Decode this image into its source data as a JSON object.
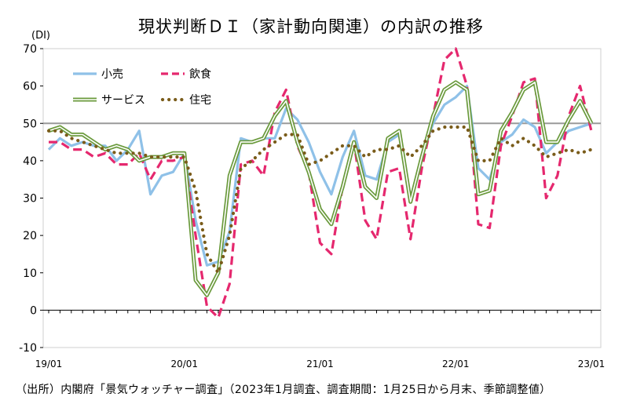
{
  "chart_data": {
    "type": "line",
    "title": "現状判断ＤＩ（家計動向関連）の内訳の推移",
    "ylabel": "(DI)",
    "xlabel": "",
    "ylim": [
      -10,
      70
    ],
    "yticks": [
      -10,
      0,
      10,
      20,
      30,
      40,
      50,
      60,
      70
    ],
    "reference_line": 50,
    "x_tick_labels": [
      "19/01",
      "20/01",
      "21/01",
      "22/01",
      "23/01"
    ],
    "x": [
      "19/01",
      "19/02",
      "19/03",
      "19/04",
      "19/05",
      "19/06",
      "19/07",
      "19/08",
      "19/09",
      "19/10",
      "19/11",
      "19/12",
      "20/01",
      "20/02",
      "20/03",
      "20/04",
      "20/05",
      "20/06",
      "20/07",
      "20/08",
      "20/09",
      "20/10",
      "20/11",
      "20/12",
      "21/01",
      "21/02",
      "21/03",
      "21/04",
      "21/05",
      "21/06",
      "21/07",
      "21/08",
      "21/09",
      "21/10",
      "21/11",
      "21/12",
      "22/01",
      "22/02",
      "22/03",
      "22/04",
      "22/05",
      "22/06",
      "22/07",
      "22/08",
      "22/09",
      "22/10",
      "22/11",
      "22/12",
      "23/01"
    ],
    "legend_position": "top-left",
    "series": [
      {
        "name": "小売",
        "color": "#8fc1e8",
        "style": "solid",
        "values": [
          43,
          46,
          44,
          45,
          44,
          44,
          40,
          43,
          48,
          31,
          36,
          37,
          42,
          24,
          12,
          13,
          21,
          46,
          45,
          46,
          46,
          54,
          51,
          45,
          37,
          31,
          41,
          48,
          36,
          35,
          45,
          47,
          30,
          41,
          50,
          55,
          57,
          60,
          38,
          35,
          45,
          47,
          51,
          49,
          42,
          45,
          48,
          49,
          50
        ]
      },
      {
        "name": "飲食",
        "color": "#e5286e",
        "style": "dashed",
        "values": [
          45,
          45,
          43,
          43,
          41,
          42,
          39,
          39,
          42,
          35,
          40,
          40,
          41,
          20,
          1,
          -2,
          7,
          39,
          40,
          36,
          53,
          59,
          44,
          37,
          18,
          15,
          33,
          45,
          24,
          19,
          37,
          38,
          19,
          38,
          52,
          67,
          70,
          60,
          23,
          22,
          44,
          52,
          61,
          62,
          30,
          36,
          52,
          60,
          48
        ]
      },
      {
        "name": "サービス",
        "color": "#6a9a3c",
        "style": "double",
        "values": [
          48,
          49,
          47,
          47,
          45,
          43,
          44,
          43,
          40,
          41,
          41,
          42,
          42,
          8,
          4,
          10,
          36,
          45,
          45,
          46,
          52,
          56,
          45,
          37,
          27,
          23,
          33,
          45,
          33,
          30,
          46,
          48,
          29,
          41,
          52,
          59,
          61,
          59,
          31,
          32,
          48,
          53,
          59,
          61,
          45,
          45,
          51,
          56,
          50
        ]
      },
      {
        "name": "住宅",
        "color": "#7a5c1a",
        "style": "dotted",
        "values": [
          48,
          48,
          46,
          45,
          44,
          43,
          42,
          42,
          42,
          41,
          41,
          41,
          41,
          32,
          15,
          10,
          20,
          38,
          40,
          43,
          45,
          47,
          47,
          39,
          40,
          42,
          44,
          44,
          41,
          43,
          43,
          44,
          41,
          44,
          48,
          49,
          49,
          49,
          40,
          40,
          46,
          44,
          46,
          44,
          41,
          42,
          43,
          42,
          43
        ]
      }
    ]
  },
  "footnote": "（出所）内閣府「景気ウォッチャー調査」（2023年1月調査、調査期間：1月25日から月末、季節調整値）"
}
